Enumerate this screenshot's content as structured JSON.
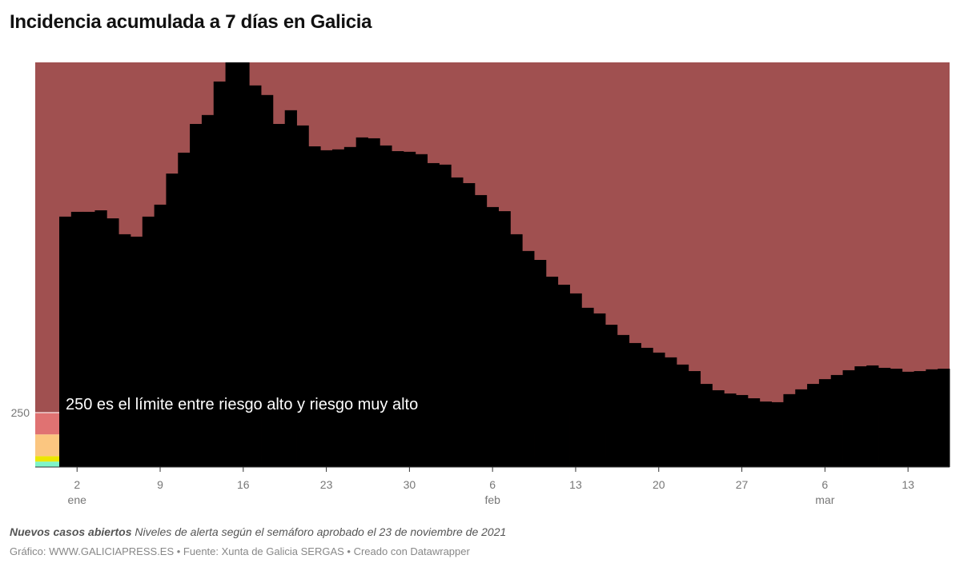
{
  "title": "Incidencia acumulada a 7 días en Galicia",
  "chart_data": {
    "type": "bar",
    "title": "Incidencia acumulada a 7 días en Galicia",
    "x_start": "2021-01-01",
    "x_end": "2021-03-16",
    "ylim": [
      0,
      1860
    ],
    "y_ticks": [
      250
    ],
    "x_ticks": [
      {
        "day": 1,
        "label": "2",
        "month": "ene"
      },
      {
        "day": 8,
        "label": "9"
      },
      {
        "day": 15,
        "label": "16"
      },
      {
        "day": 22,
        "label": "23"
      },
      {
        "day": 29,
        "label": "30"
      },
      {
        "day": 36,
        "label": "6",
        "month": "feb"
      },
      {
        "day": 43,
        "label": "13"
      },
      {
        "day": 50,
        "label": "20"
      },
      {
        "day": 57,
        "label": "27"
      },
      {
        "day": 64,
        "label": "6",
        "month": "mar"
      },
      {
        "day": 71,
        "label": "13"
      }
    ],
    "values": [
      1151,
      1173,
      1173,
      1180,
      1143,
      1070,
      1059,
      1151,
      1206,
      1349,
      1445,
      1577,
      1618,
      1772,
      1860,
      1860,
      1754,
      1710,
      1577,
      1640,
      1570,
      1474,
      1456,
      1460,
      1471,
      1515,
      1511,
      1478,
      1452,
      1449,
      1438,
      1397,
      1390,
      1331,
      1305,
      1250,
      1195,
      1176,
      1070,
      993,
      952,
      875,
      838,
      798,
      732,
      706,
      654,
      607,
      570,
      548,
      526,
      504,
      471,
      441,
      382,
      353,
      338,
      331,
      316,
      301,
      298,
      335,
      357,
      382,
      404,
      423,
      445,
      463,
      467,
      456,
      452,
      438,
      441,
      449,
      452
    ],
    "bar_color": "#000000",
    "bands": [
      {
        "from": 0,
        "to": 25,
        "color": "#7ff5c9"
      },
      {
        "from": 25,
        "to": 50,
        "color": "#ece600"
      },
      {
        "from": 50,
        "to": 150,
        "color": "#fbc680"
      },
      {
        "from": 150,
        "to": 250,
        "color": "#e07272"
      },
      {
        "from": 250,
        "to": 1860,
        "color": "#a05050"
      }
    ],
    "annotation": "250 es el límite entre riesgo alto y riesgo muy alto",
    "grid": false
  },
  "notes": {
    "bold": "Nuevos casos abiertos",
    "text": " Niveles de alerta según el semáforo aprobado el 23 de noviembre de 2021"
  },
  "credits": "Gráfico: WWW.GALICIAPRESS.ES • Fuente: Xunta de Galicia SERGAS • Creado con Datawrapper"
}
